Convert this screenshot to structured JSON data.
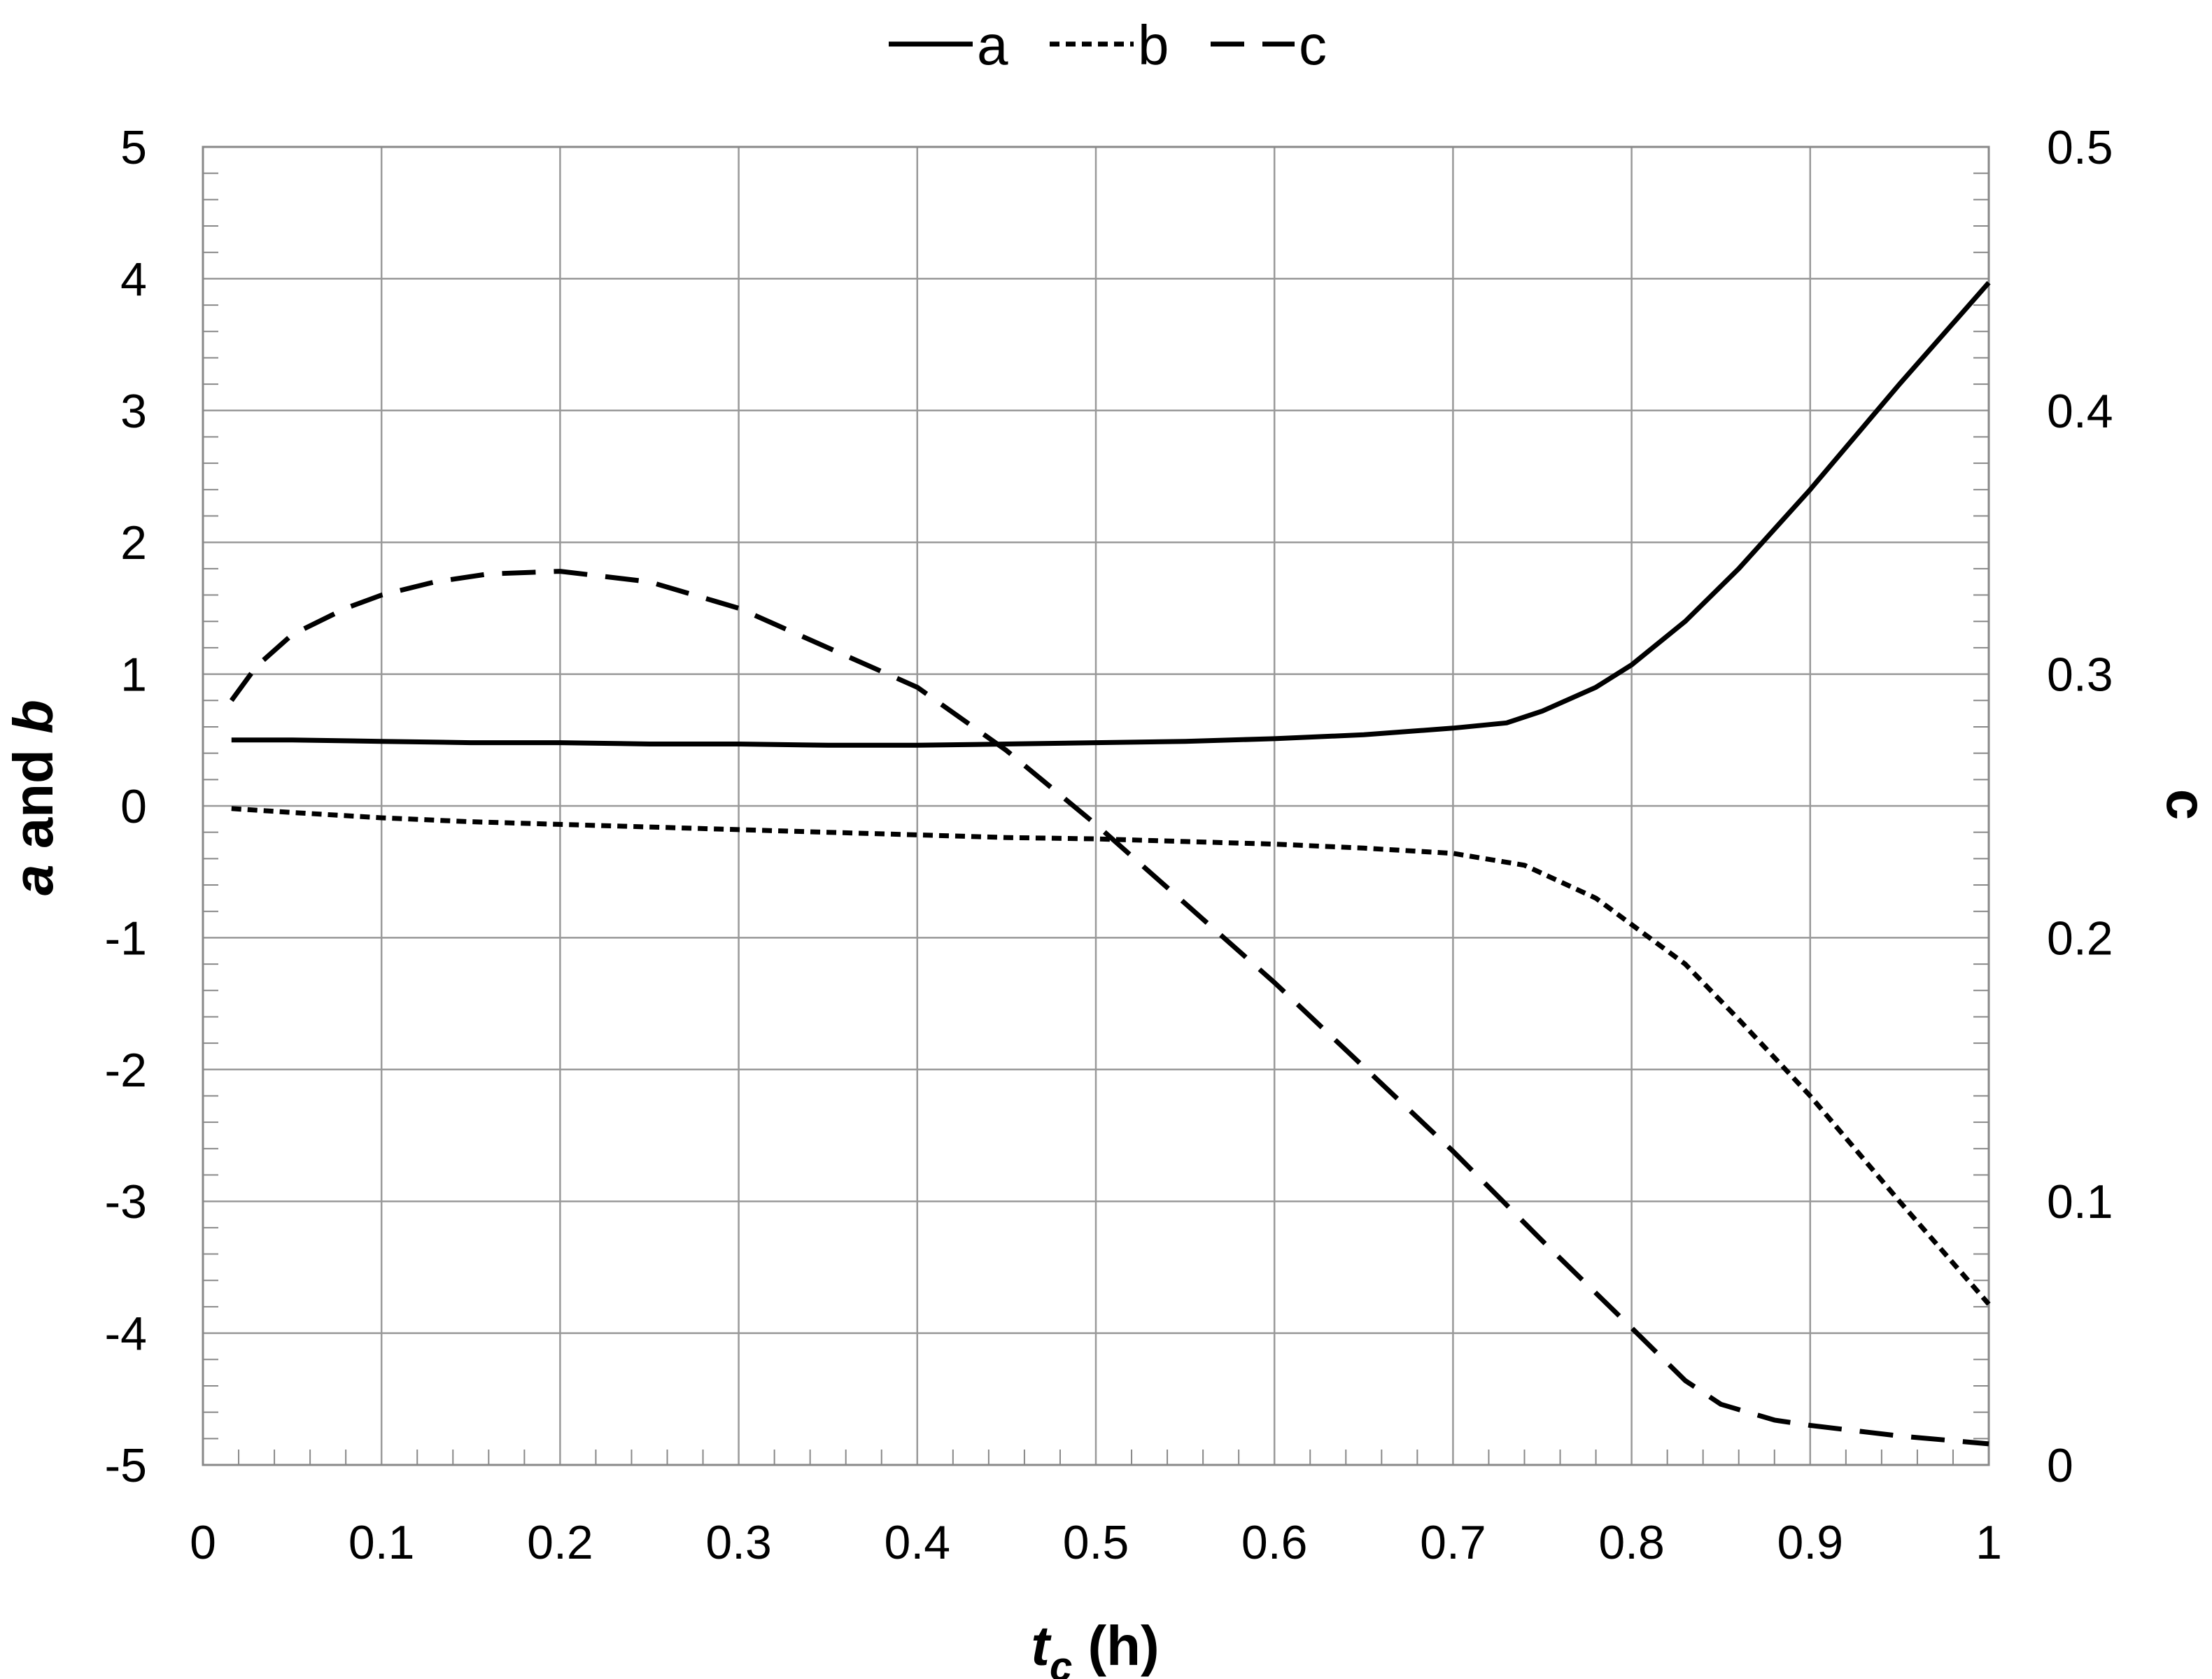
{
  "chart_data": {
    "type": "line",
    "xlabel_main": "t",
    "xlabel_sub": "c",
    "xlabel_rest": " (h)",
    "ylabel_left_a": "a",
    "ylabel_left_mid": " and ",
    "ylabel_left_b": "b",
    "ylabel_right": "c",
    "xlim": [
      0,
      1
    ],
    "ylim_left": [
      -5,
      5
    ],
    "ylim_right": [
      0,
      0.5
    ],
    "x_ticks": [
      "0",
      "0.1",
      "0.2",
      "0.3",
      "0.4",
      "0.5",
      "0.6",
      "0.7",
      "0.8",
      "0.9",
      "1"
    ],
    "y_left_ticks": [
      "5",
      "4",
      "3",
      "2",
      "1",
      "0",
      "-1",
      "-2",
      "-3",
      "-4",
      "-5"
    ],
    "y_right_ticks": [
      "0.5",
      "0.4",
      "0.3",
      "0.2",
      "0.1",
      "0"
    ],
    "grid": true,
    "legend_position": "top-center",
    "series": [
      {
        "name": "a",
        "axis": "left",
        "style": "solid",
        "color": "#000000",
        "points": [
          [
            0.016,
            0.5
          ],
          [
            0.05,
            0.5
          ],
          [
            0.1,
            0.49
          ],
          [
            0.15,
            0.48
          ],
          [
            0.2,
            0.48
          ],
          [
            0.25,
            0.47
          ],
          [
            0.3,
            0.47
          ],
          [
            0.35,
            0.46
          ],
          [
            0.4,
            0.46
          ],
          [
            0.45,
            0.47
          ],
          [
            0.5,
            0.48
          ],
          [
            0.55,
            0.49
          ],
          [
            0.6,
            0.51
          ],
          [
            0.65,
            0.54
          ],
          [
            0.7,
            0.59
          ],
          [
            0.73,
            0.63
          ],
          [
            0.75,
            0.72
          ],
          [
            0.78,
            0.9
          ],
          [
            0.8,
            1.07
          ],
          [
            0.83,
            1.4
          ],
          [
            0.86,
            1.8
          ],
          [
            0.9,
            2.4
          ],
          [
            0.95,
            3.2
          ],
          [
            1.0,
            3.97
          ]
        ]
      },
      {
        "name": "b",
        "axis": "left",
        "style": "dotted",
        "color": "#000000",
        "points": [
          [
            0.016,
            -0.02
          ],
          [
            0.05,
            -0.05
          ],
          [
            0.1,
            -0.09
          ],
          [
            0.15,
            -0.12
          ],
          [
            0.2,
            -0.14
          ],
          [
            0.25,
            -0.16
          ],
          [
            0.3,
            -0.18
          ],
          [
            0.35,
            -0.2
          ],
          [
            0.4,
            -0.22
          ],
          [
            0.45,
            -0.24
          ],
          [
            0.5,
            -0.25
          ],
          [
            0.55,
            -0.27
          ],
          [
            0.6,
            -0.29
          ],
          [
            0.65,
            -0.32
          ],
          [
            0.7,
            -0.36
          ],
          [
            0.74,
            -0.45
          ],
          [
            0.78,
            -0.7
          ],
          [
            0.8,
            -0.9
          ],
          [
            0.83,
            -1.2
          ],
          [
            0.86,
            -1.62
          ],
          [
            0.9,
            -2.2
          ],
          [
            0.95,
            -3.0
          ],
          [
            1.0,
            -3.78
          ]
        ]
      },
      {
        "name": "c",
        "axis": "right",
        "style": "dashed",
        "color": "#000000",
        "points": [
          [
            0.016,
            0.29
          ],
          [
            0.03,
            0.303
          ],
          [
            0.05,
            0.315
          ],
          [
            0.08,
            0.325
          ],
          [
            0.1,
            0.33
          ],
          [
            0.13,
            0.335
          ],
          [
            0.16,
            0.338
          ],
          [
            0.2,
            0.339
          ],
          [
            0.25,
            0.335
          ],
          [
            0.3,
            0.325
          ],
          [
            0.35,
            0.31
          ],
          [
            0.4,
            0.295
          ],
          [
            0.45,
            0.271
          ],
          [
            0.5,
            0.243
          ],
          [
            0.55,
            0.213
          ],
          [
            0.6,
            0.183
          ],
          [
            0.65,
            0.151
          ],
          [
            0.7,
            0.119
          ],
          [
            0.75,
            0.085
          ],
          [
            0.8,
            0.052
          ],
          [
            0.83,
            0.032
          ],
          [
            0.85,
            0.023
          ],
          [
            0.88,
            0.017
          ],
          [
            0.9,
            0.015
          ],
          [
            0.95,
            0.011
          ],
          [
            1.0,
            0.008
          ]
        ]
      }
    ]
  }
}
